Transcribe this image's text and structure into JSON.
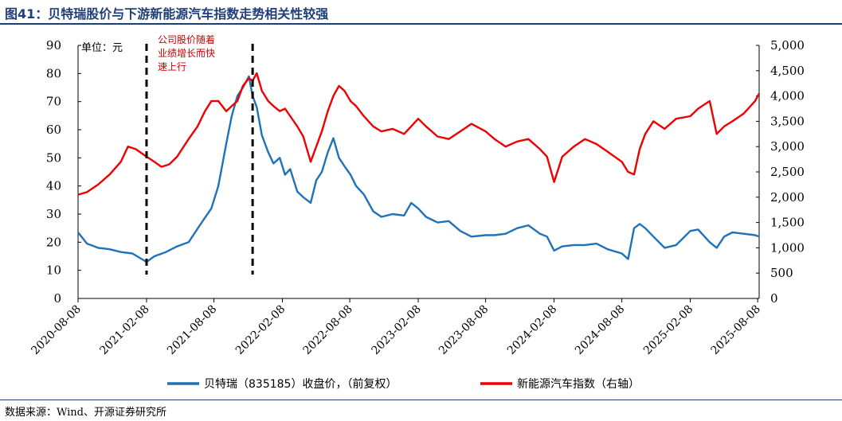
{
  "header": {
    "title": "图41：贝特瑞股价与下游新能源汽车指数走势相关性较强"
  },
  "footer": {
    "source": "数据来源：Wind、开源证券研究所"
  },
  "chart_data": {
    "type": "line",
    "unit_label": "单位：元",
    "annotation": [
      "公司股价随着",
      "业绩增长而快",
      "速上行"
    ],
    "x_ticks": [
      "2020-08-08",
      "2021-02-08",
      "2021-08-08",
      "2022-02-08",
      "2022-08-08",
      "2023-02-08",
      "2023-08-08",
      "2024-02-08",
      "2024-08-08",
      "2025-02-08",
      "2025-08-08"
    ],
    "x_range": [
      "2020-08-08",
      "2025-08-12"
    ],
    "left_axis": {
      "ticks": [
        0,
        10,
        20,
        30,
        40,
        50,
        60,
        70,
        80,
        90
      ],
      "ylim": [
        0,
        90
      ]
    },
    "right_axis": {
      "ticks": [
        "0",
        "500",
        "1,000",
        "1,500",
        "2,000",
        "2,500",
        "3,000",
        "3,500",
        "4,000",
        "4,500",
        "5,000"
      ],
      "ylim": [
        0,
        5000
      ]
    },
    "vlines": [
      "2021-02-08",
      "2021-11-20"
    ],
    "legend_position": "bottom",
    "colors": {
      "series1": "#1f72b8",
      "series2": "#ee0000",
      "annotation": "#cc0000",
      "title": "#1f3f7a"
    },
    "series": [
      {
        "name": "贝特瑞（835185）收盘价，（前复权）",
        "axis": "left",
        "x": [
          "2020-08-08",
          "2020-09-01",
          "2020-10-01",
          "2020-11-01",
          "2020-12-01",
          "2021-01-01",
          "2021-02-08",
          "2021-03-01",
          "2021-04-01",
          "2021-05-01",
          "2021-06-01",
          "2021-07-01",
          "2021-08-01",
          "2021-08-20",
          "2021-09-10",
          "2021-09-25",
          "2021-10-10",
          "2021-10-25",
          "2021-11-10",
          "2021-11-20",
          "2021-12-01",
          "2021-12-15",
          "2022-01-01",
          "2022-01-15",
          "2022-02-01",
          "2022-02-15",
          "2022-03-01",
          "2022-03-20",
          "2022-04-05",
          "2022-04-25",
          "2022-05-10",
          "2022-05-25",
          "2022-06-10",
          "2022-06-25",
          "2022-07-10",
          "2022-07-25",
          "2022-08-10",
          "2022-08-25",
          "2022-09-15",
          "2022-10-10",
          "2022-11-01",
          "2022-12-01",
          "2023-01-01",
          "2023-01-20",
          "2023-02-08",
          "2023-03-01",
          "2023-04-01",
          "2023-05-01",
          "2023-06-01",
          "2023-07-01",
          "2023-08-08",
          "2023-09-01",
          "2023-10-01",
          "2023-11-01",
          "2023-12-01",
          "2024-01-01",
          "2024-01-20",
          "2024-02-08",
          "2024-03-01",
          "2024-04-01",
          "2024-05-01",
          "2024-06-01",
          "2024-07-01",
          "2024-08-08",
          "2024-08-25",
          "2024-09-10",
          "2024-09-25",
          "2024-10-10",
          "2024-11-01",
          "2024-12-01",
          "2025-01-01",
          "2025-02-08",
          "2025-03-01",
          "2025-04-01",
          "2025-04-20",
          "2025-05-10",
          "2025-06-01",
          "2025-07-01",
          "2025-08-01",
          "2025-08-12"
        ],
        "values": [
          23.5,
          19.5,
          18.0,
          17.5,
          16.5,
          16.0,
          13.0,
          15.0,
          16.5,
          18.5,
          20.0,
          26.0,
          32.0,
          40.0,
          55.0,
          65.0,
          72.0,
          75.0,
          79.0,
          72.0,
          68.0,
          58.0,
          52.0,
          48.0,
          50.0,
          44.0,
          46.0,
          38.0,
          36.0,
          34.0,
          42.0,
          45.0,
          52.0,
          57.0,
          50.0,
          47.0,
          44.0,
          40.0,
          37.0,
          31.0,
          29.0,
          30.0,
          29.5,
          34.0,
          32.0,
          29.0,
          27.0,
          27.5,
          24.0,
          22.0,
          22.5,
          22.5,
          23.0,
          25.0,
          26.0,
          23.0,
          22.0,
          17.0,
          18.5,
          19.0,
          19.0,
          19.5,
          17.5,
          16.0,
          14.0,
          25.0,
          26.5,
          25.0,
          22.0,
          18.0,
          19.0,
          24.0,
          24.5,
          20.0,
          18.0,
          22.0,
          23.5,
          23.0,
          22.5,
          22.0
        ]
      },
      {
        "name": "新能源汽车指数（右轴）",
        "axis": "right",
        "x": [
          "2020-08-08",
          "2020-09-01",
          "2020-10-01",
          "2020-11-01",
          "2020-12-01",
          "2020-12-20",
          "2021-01-10",
          "2021-02-08",
          "2021-03-01",
          "2021-03-20",
          "2021-04-10",
          "2021-05-01",
          "2021-06-01",
          "2021-06-25",
          "2021-07-15",
          "2021-08-01",
          "2021-08-20",
          "2021-09-10",
          "2021-09-25",
          "2021-10-10",
          "2021-10-25",
          "2021-11-10",
          "2021-11-20",
          "2021-12-01",
          "2021-12-15",
          "2022-01-01",
          "2022-01-15",
          "2022-02-01",
          "2022-02-15",
          "2022-03-01",
          "2022-03-20",
          "2022-04-05",
          "2022-04-25",
          "2022-05-10",
          "2022-05-25",
          "2022-06-10",
          "2022-06-25",
          "2022-07-10",
          "2022-07-25",
          "2022-08-10",
          "2022-08-25",
          "2022-09-15",
          "2022-10-10",
          "2022-11-01",
          "2022-12-01",
          "2023-01-01",
          "2023-01-20",
          "2023-02-08",
          "2023-03-01",
          "2023-04-01",
          "2023-05-01",
          "2023-06-01",
          "2023-07-01",
          "2023-08-08",
          "2023-09-01",
          "2023-10-01",
          "2023-11-01",
          "2023-12-01",
          "2024-01-01",
          "2024-01-20",
          "2024-02-08",
          "2024-03-01",
          "2024-04-01",
          "2024-05-01",
          "2024-06-01",
          "2024-07-01",
          "2024-08-08",
          "2024-08-25",
          "2024-09-10",
          "2024-09-25",
          "2024-10-10",
          "2024-11-01",
          "2024-12-01",
          "2025-01-01",
          "2025-02-08",
          "2025-03-01",
          "2025-04-01",
          "2025-04-20",
          "2025-05-10",
          "2025-06-01",
          "2025-07-01",
          "2025-08-01",
          "2025-08-12"
        ],
        "values": [
          2050,
          2100,
          2250,
          2450,
          2700,
          3000,
          2950,
          2800,
          2700,
          2600,
          2650,
          2800,
          3150,
          3400,
          3700,
          3900,
          3900,
          3700,
          3800,
          3900,
          4200,
          4350,
          4300,
          4450,
          4100,
          3900,
          3800,
          3700,
          3750,
          3600,
          3400,
          3200,
          2700,
          3000,
          3300,
          3700,
          4000,
          4200,
          4100,
          3900,
          3800,
          3600,
          3400,
          3300,
          3350,
          3250,
          3400,
          3550,
          3400,
          3200,
          3150,
          3300,
          3450,
          3300,
          3150,
          3000,
          3100,
          3150,
          2950,
          2800,
          2300,
          2800,
          3000,
          3150,
          3050,
          2900,
          2700,
          2500,
          2450,
          2950,
          3250,
          3500,
          3350,
          3550,
          3600,
          3750,
          3900,
          3250,
          3400,
          3500,
          3650,
          3900,
          4050
        ]
      }
    ]
  }
}
